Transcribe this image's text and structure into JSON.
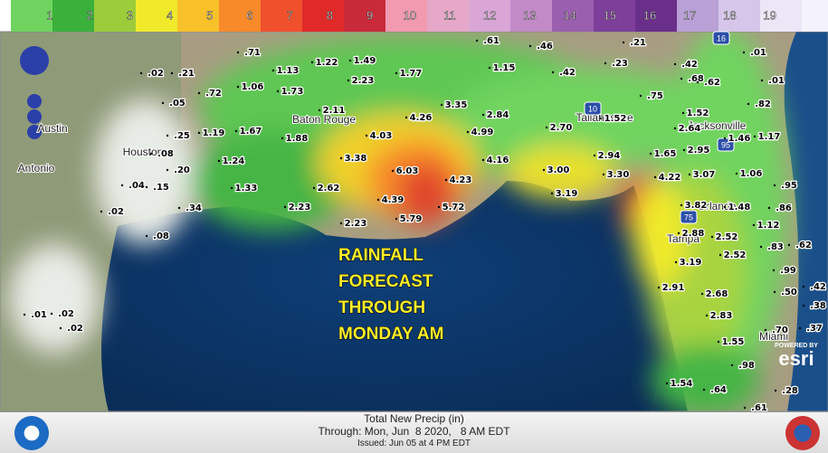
{
  "legend": {
    "labels": [
      1,
      2,
      3,
      4,
      5,
      6,
      7,
      8,
      9,
      10,
      11,
      12,
      13,
      14,
      15,
      16,
      17,
      18,
      19
    ],
    "colors": [
      "#6fd45f",
      "#3bb03b",
      "#9ccc3a",
      "#f0ea2b",
      "#f8c12a",
      "#f88a2a",
      "#f0502c",
      "#e02a2a",
      "#c82a3a",
      "#f19ab0",
      "#e6a8c8",
      "#d9a6d6",
      "#c38ac8",
      "#9b5fb0",
      "#7e3f9a",
      "#6a2f8a",
      "#b9a0d6",
      "#d6c6ea",
      "#ece6f6"
    ]
  },
  "overlay": {
    "lines": [
      "RAINFALL",
      "FORECAST",
      "THROUGH",
      "MONDAY AM"
    ]
  },
  "cities": [
    "Austin",
    "Antonio",
    "Houston",
    "Baton Rouge",
    "Tallahassee",
    "Jacksonville",
    "Orlando",
    "Tampa",
    "Miami"
  ],
  "highways": [
    "16",
    "95",
    "10",
    "75"
  ],
  "rainfall_totals": [
    ".61",
    ".46",
    ".21",
    ".01",
    ".23",
    ".42",
    ".42",
    ".01",
    ".68",
    ".62",
    ".71",
    "1.13",
    "1.22",
    "1.49",
    "1.77",
    "1.15",
    ".02",
    ".21",
    ".72",
    "1.06",
    "1.73",
    "2.23",
    ".75",
    ".82",
    ".05",
    "2.11",
    "3.35",
    "2.84",
    "4.26",
    "1.52",
    "1.52",
    ".25",
    "1.19",
    "1.67",
    "1.88",
    "4.03",
    "4.99",
    "2.70",
    "2.64",
    "1.46",
    "1.17",
    ".08",
    ".20",
    "1.24",
    "3.38",
    "6.03",
    "4.16",
    "2.94",
    "1.65",
    "2.95",
    "3.00",
    "3.30",
    "4.22",
    "3.07",
    "1.06",
    ".04",
    ".15",
    "1.33",
    "2.62",
    "4.23",
    "3.19",
    ".95",
    ".02",
    ".34",
    "2.23",
    "4.39",
    "5.72",
    "3.82",
    "1.48",
    ".86",
    "2.23",
    "5.79",
    "2.88",
    "2.52",
    "1.12",
    ".08",
    ".62",
    ".83",
    "2.52",
    "3.19",
    ".99",
    "2.91",
    "2.68",
    ".50",
    ".42",
    ".38",
    ".01",
    ".02",
    ".02",
    "2.83",
    ".70",
    ".37",
    "1.55",
    ".98",
    "1.54",
    ".64",
    ".28",
    ".61"
  ],
  "footer": {
    "title": "Total New Precip (in)",
    "through": "Through: Mon, Jun  8 2020,   8 AM EDT",
    "issued": "Issued: Jun 05 at 4 PM EDT"
  },
  "esri": {
    "powered": "POWERED BY",
    "logo": "esri"
  }
}
